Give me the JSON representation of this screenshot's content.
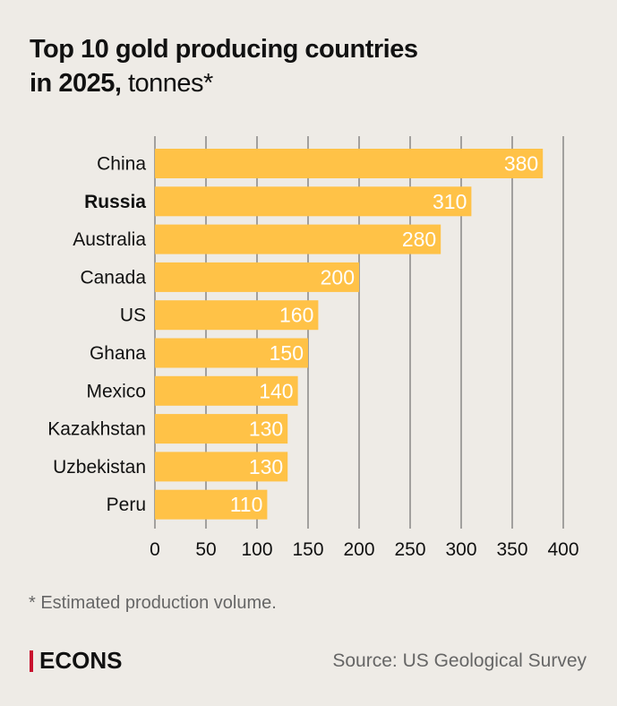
{
  "title": {
    "bold_line1": "Top 10 gold producing countries",
    "bold_line2": "in 2025,",
    "light": " tonnes*"
  },
  "footnote": "* Estimated production volume.",
  "brand": "ECONS",
  "source": "Source: US Geological Survey",
  "colors": {
    "bar": "#ffc247",
    "brand_accent": "#c8102e",
    "grid": "#555555"
  },
  "chart_data": {
    "type": "bar",
    "orientation": "horizontal",
    "title": "Top 10 gold producing countries in 2025, tonnes*",
    "categories": [
      "China",
      "Russia",
      "Australia",
      "Canada",
      "US",
      "Ghana",
      "Mexico",
      "Kazakhstan",
      "Uzbekistan",
      "Peru"
    ],
    "highlighted": [
      "Russia"
    ],
    "values": [
      380,
      310,
      280,
      200,
      160,
      150,
      140,
      130,
      130,
      110
    ],
    "xlim": [
      0,
      400
    ],
    "xticks": [
      0,
      50,
      100,
      150,
      200,
      250,
      300,
      350,
      400
    ],
    "grid": true,
    "xlabel": "",
    "ylabel": ""
  }
}
